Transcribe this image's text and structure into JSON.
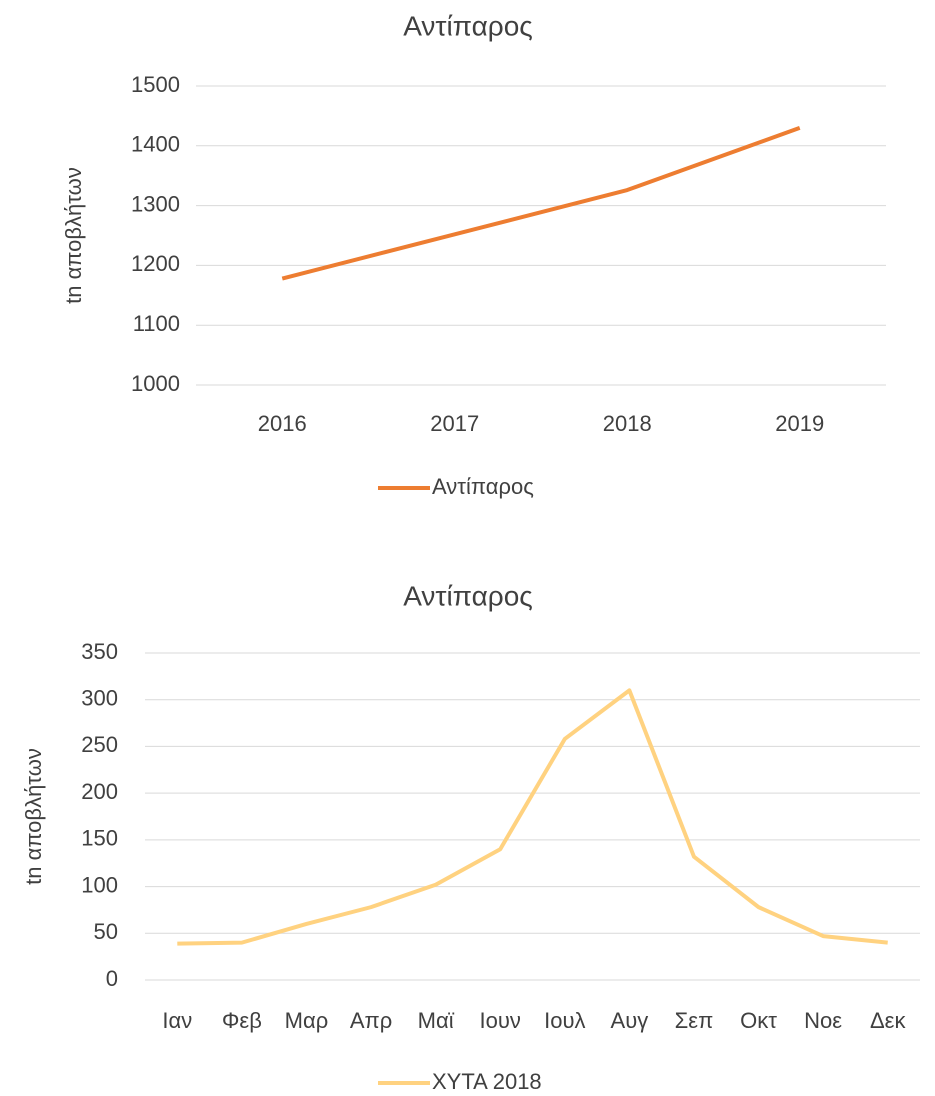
{
  "chart_data": [
    {
      "type": "line",
      "title": "Αντίπαρος",
      "ylabel": "tn αποβλήτων",
      "categories": [
        "2016",
        "2017",
        "2018",
        "2019"
      ],
      "series": [
        {
          "name": "Αντίπαρος",
          "color": "#ed7d31",
          "values": [
            1178,
            1252,
            1326,
            1430
          ]
        }
      ],
      "ylim": [
        1000,
        1500
      ],
      "yticks": [
        1000,
        1100,
        1200,
        1300,
        1400,
        1500
      ],
      "grid": true,
      "legend": "bottom"
    },
    {
      "type": "line",
      "title": "Αντίπαρος",
      "ylabel": "tn αποβλήτων",
      "categories": [
        "Ιαν",
        "Φεβ",
        "Μαρ",
        "Απρ",
        "Μαϊ",
        "Ιουν",
        "Ιουλ",
        "Αυγ",
        "Σεπ",
        "Οκτ",
        "Νοε",
        "Δεκ"
      ],
      "series": [
        {
          "name": "ΧΥΤΑ 2018",
          "color": "#ffd280",
          "values": [
            39,
            40,
            60,
            78,
            102,
            140,
            258,
            310,
            132,
            78,
            47,
            40
          ]
        }
      ],
      "ylim": [
        0,
        350
      ],
      "yticks": [
        0,
        50,
        100,
        150,
        200,
        250,
        300,
        350
      ],
      "grid": true,
      "legend": "bottom"
    }
  ]
}
